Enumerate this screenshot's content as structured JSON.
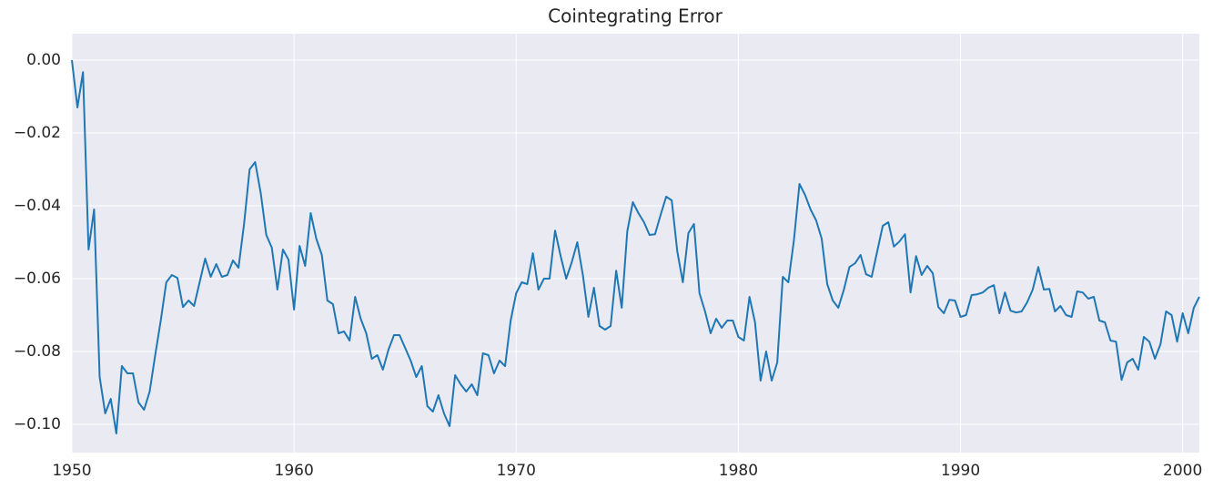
{
  "chart_data": {
    "type": "line",
    "title": "Cointegrating Error",
    "x": [
      1950,
      1950.25,
      1950.5,
      1950.75,
      1951,
      1951.25,
      1951.5,
      1951.75,
      1952,
      1952.25,
      1952.5,
      1952.75,
      1953,
      1953.25,
      1953.5,
      1953.75,
      1954,
      1954.25,
      1954.5,
      1954.75,
      1955,
      1955.25,
      1955.5,
      1955.75,
      1956,
      1956.25,
      1956.5,
      1956.75,
      1957,
      1957.25,
      1957.5,
      1957.75,
      1958,
      1958.25,
      1958.5,
      1958.75,
      1959,
      1959.25,
      1959.5,
      1959.75,
      1960,
      1960.25,
      1960.5,
      1960.75,
      1961,
      1961.25,
      1961.5,
      1961.75,
      1962,
      1962.25,
      1962.5,
      1962.75,
      1963,
      1963.25,
      1963.5,
      1963.75,
      1964,
      1964.25,
      1964.5,
      1964.75,
      1965,
      1965.25,
      1965.5,
      1965.75,
      1966,
      1966.25,
      1966.5,
      1966.75,
      1967,
      1967.25,
      1967.5,
      1967.75,
      1968,
      1968.25,
      1968.5,
      1968.75,
      1969,
      1969.25,
      1969.5,
      1969.75,
      1970,
      1970.25,
      1970.5,
      1970.75,
      1971,
      1971.25,
      1971.5,
      1971.75,
      1972,
      1972.25,
      1972.5,
      1972.75,
      1973,
      1973.25,
      1973.5,
      1973.75,
      1974,
      1974.25,
      1974.5,
      1974.75,
      1975,
      1975.25,
      1975.5,
      1975.75,
      1976,
      1976.25,
      1976.5,
      1976.75,
      1977,
      1977.25,
      1977.5,
      1977.75,
      1978,
      1978.25,
      1978.5,
      1978.75,
      1979,
      1979.25,
      1979.5,
      1979.75,
      1980,
      1980.25,
      1980.5,
      1980.75,
      1981,
      1981.25,
      1981.5,
      1981.75,
      1982,
      1982.25,
      1982.5,
      1982.75,
      1983,
      1983.25,
      1983.5,
      1983.75,
      1984,
      1984.25,
      1984.5,
      1984.75,
      1985,
      1985.25,
      1985.5,
      1985.75,
      1986,
      1986.25,
      1986.5,
      1986.75,
      1987,
      1987.25,
      1987.5,
      1987.75,
      1988,
      1988.25,
      1988.5,
      1988.75,
      1989,
      1989.25,
      1989.5,
      1989.75,
      1990,
      1990.25,
      1990.5,
      1990.75,
      1991,
      1991.25,
      1991.5,
      1991.75,
      1992,
      1992.25,
      1992.5,
      1992.75,
      1993,
      1993.25,
      1993.5,
      1993.75,
      1994,
      1994.25,
      1994.5,
      1994.75,
      1995,
      1995.25,
      1995.5,
      1995.75,
      1996,
      1996.25,
      1996.5,
      1996.75,
      1997,
      1997.25,
      1997.5,
      1997.75,
      1998,
      1998.25,
      1998.5,
      1998.75,
      1999,
      1999.25,
      1999.5,
      1999.75,
      2000,
      2000.25,
      2000.5,
      2000.75
    ],
    "series": [
      {
        "color": "#1f77b4",
        "values": [
          0,
          -0.013,
          -0.0033,
          -0.052,
          -0.041,
          -0.087,
          -0.097,
          -0.093,
          -0.1025,
          -0.084,
          -0.086,
          -0.086,
          -0.094,
          -0.096,
          -0.091,
          -0.081,
          -0.0715,
          -0.061,
          -0.059,
          -0.0598,
          -0.0678,
          -0.066,
          -0.0675,
          -0.061,
          -0.0545,
          -0.0595,
          -0.056,
          -0.0595,
          -0.059,
          -0.055,
          -0.057,
          -0.045,
          -0.03,
          -0.028,
          -0.0365,
          -0.048,
          -0.0515,
          -0.063,
          -0.052,
          -0.0548,
          -0.0685,
          -0.051,
          -0.0565,
          -0.042,
          -0.049,
          -0.0535,
          -0.066,
          -0.067,
          -0.075,
          -0.0745,
          -0.077,
          -0.065,
          -0.071,
          -0.075,
          -0.082,
          -0.081,
          -0.085,
          -0.0795,
          -0.0755,
          -0.0755,
          -0.079,
          -0.0825,
          -0.087,
          -0.084,
          -0.095,
          -0.0965,
          -0.092,
          -0.097,
          -0.1005,
          -0.0865,
          -0.089,
          -0.091,
          -0.089,
          -0.092,
          -0.0805,
          -0.081,
          -0.086,
          -0.0825,
          -0.084,
          -0.0715,
          -0.064,
          -0.061,
          -0.0615,
          -0.053,
          -0.063,
          -0.06,
          -0.06,
          -0.0468,
          -0.0538,
          -0.06,
          -0.0555,
          -0.05,
          -0.059,
          -0.0705,
          -0.0625,
          -0.073,
          -0.074,
          -0.073,
          -0.0578,
          -0.068,
          -0.047,
          -0.039,
          -0.042,
          -0.0445,
          -0.048,
          -0.0478,
          -0.0425,
          -0.0375,
          -0.0385,
          -0.0525,
          -0.061,
          -0.0475,
          -0.045,
          -0.064,
          -0.069,
          -0.075,
          -0.071,
          -0.0735,
          -0.0715,
          -0.0715,
          -0.076,
          -0.077,
          -0.065,
          -0.072,
          -0.088,
          -0.08,
          -0.088,
          -0.083,
          -0.0595,
          -0.061,
          -0.0495,
          -0.034,
          -0.037,
          -0.041,
          -0.044,
          -0.049,
          -0.0615,
          -0.066,
          -0.068,
          -0.063,
          -0.0568,
          -0.0558,
          -0.0535,
          -0.0588,
          -0.0595,
          -0.0525,
          -0.0455,
          -0.0445,
          -0.0512,
          -0.0498,
          -0.0478,
          -0.0638,
          -0.0538,
          -0.059,
          -0.0565,
          -0.0585,
          -0.0678,
          -0.0695,
          -0.0658,
          -0.066,
          -0.0705,
          -0.07,
          -0.0645,
          -0.0643,
          -0.0638,
          -0.0625,
          -0.0618,
          -0.0695,
          -0.0638,
          -0.0688,
          -0.0693,
          -0.069,
          -0.0665,
          -0.063,
          -0.0568,
          -0.063,
          -0.0628,
          -0.069,
          -0.0675,
          -0.07,
          -0.0705,
          -0.0635,
          -0.0638,
          -0.0655,
          -0.065,
          -0.0715,
          -0.072,
          -0.077,
          -0.0773,
          -0.0878,
          -0.083,
          -0.082,
          -0.085,
          -0.076,
          -0.0773,
          -0.082,
          -0.078,
          -0.069,
          -0.07,
          -0.0773,
          -0.0695,
          -0.075,
          -0.068,
          -0.065
        ]
      }
    ],
    "xlim": [
      1950,
      2000.75
    ],
    "xticks": [
      1950,
      1960,
      1970,
      1980,
      1990,
      2000
    ],
    "ylim": [
      -0.10775,
      0.00725
    ],
    "yticks": [
      {
        "value": 0,
        "label": "0.00"
      },
      {
        "value": -0.02,
        "label": "−0.02"
      },
      {
        "value": -0.04,
        "label": "−0.04"
      },
      {
        "value": -0.06,
        "label": "−0.06"
      },
      {
        "value": -0.08,
        "label": "−0.08"
      },
      {
        "value": -0.1,
        "label": "−0.10"
      }
    ],
    "grid": true,
    "background": "#eaeaf2"
  }
}
